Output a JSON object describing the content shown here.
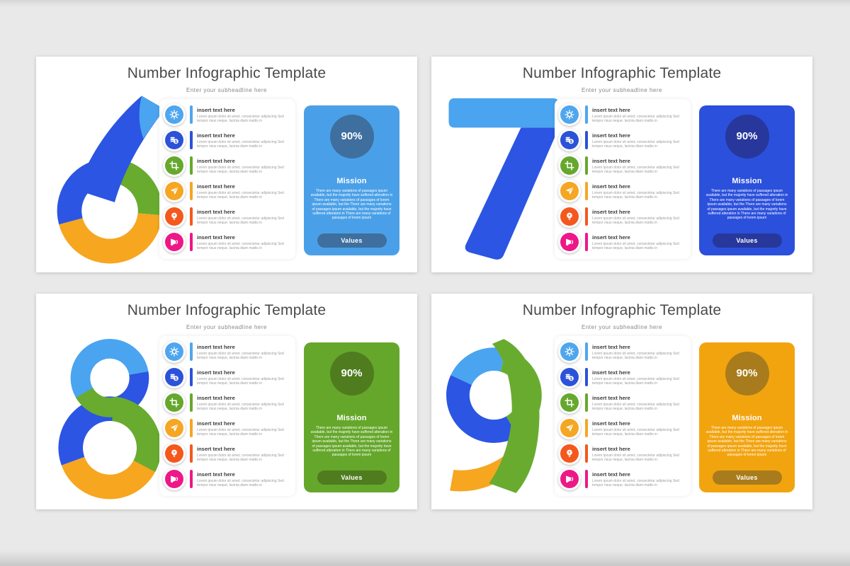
{
  "colors": {
    "canvas_bg": "#EAE9E9",
    "slide_bg": "#FFFFFF",
    "title_color": "#4A4A4A",
    "subtitle_color": "#868686"
  },
  "shared": {
    "title": "Number Infographic Template",
    "subtitle": "Enter your subheadline here",
    "item_title": "insert text here",
    "item_body": "Lorem ipsum dolor sit amet, consectetur adipiscing Sed tempor risus neque, lacinia diam mattis in",
    "percent": "90%",
    "mission_title": "Mission",
    "mission_body": "There are many variations of passages ipsum available, but the majority have suffered alteration in There are many variations of passages of lorem ipsum available, but the There are many variations of passages ipsum available, but the majority have suffered alteration in There are many variations of passages of lorem ipsum",
    "values_label": "Values"
  },
  "icons": [
    {
      "name": "gear-icon",
      "color": "#4FA6EE"
    },
    {
      "name": "coins-icon",
      "color": "#2B52D8"
    },
    {
      "name": "crop-icon",
      "color": "#66A82D"
    },
    {
      "name": "plane-icon",
      "color": "#F5A623"
    },
    {
      "name": "bulb-icon",
      "color": "#F4581D"
    },
    {
      "name": "megaphone-icon",
      "color": "#EE1787"
    }
  ],
  "number_palette": {
    "light_blue": "#4AA4F0",
    "blue": "#2B55E2",
    "green": "#69AB2F",
    "orange": "#F6A61F"
  },
  "slides": [
    {
      "number": "6",
      "panel": {
        "bg": "#4AA0E8",
        "accent": "#3E6F9F"
      }
    },
    {
      "number": "7",
      "panel": {
        "bg": "#2B50DC",
        "accent": "#27379B"
      }
    },
    {
      "number": "8",
      "panel": {
        "bg": "#65A72B",
        "accent": "#4E7C1E"
      }
    },
    {
      "number": "9",
      "panel": {
        "bg": "#F2A40F",
        "accent": "#A87C1C"
      }
    }
  ]
}
